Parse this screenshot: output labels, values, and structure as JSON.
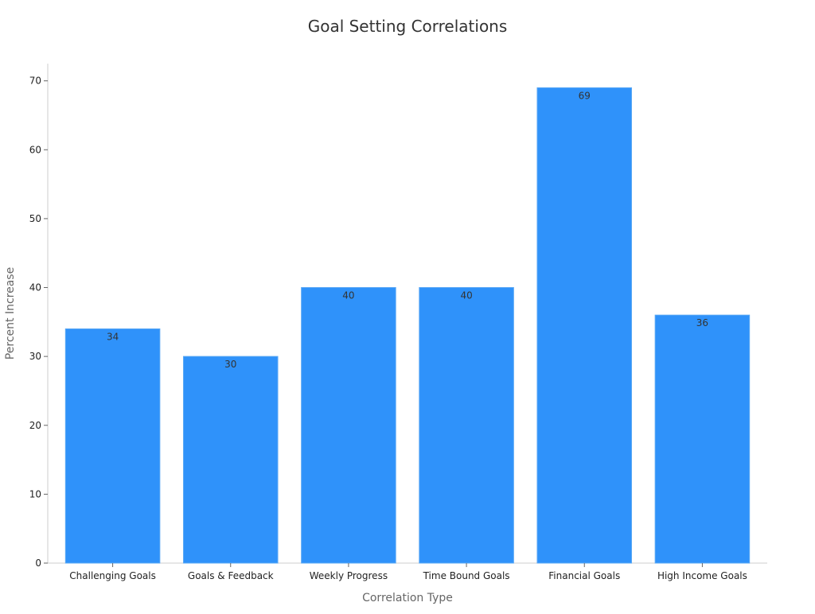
{
  "chart_data": {
    "type": "bar",
    "title": "Goal Setting Correlations",
    "xlabel": "Correlation Type",
    "ylabel": "Percent Increase",
    "categories": [
      "Challenging Goals",
      "Goals & Feedback",
      "Weekly Progress",
      "Time Bound Goals",
      "Financial Goals",
      "High Income Goals"
    ],
    "values": [
      34,
      30,
      40,
      40,
      69,
      36
    ],
    "ylim": [
      0,
      72.5
    ],
    "yticks": [
      0,
      10,
      20,
      30,
      40,
      50,
      60,
      70
    ],
    "grid": false,
    "legend": "none",
    "bar_color": "#2f92fa",
    "bar_edge_color": "#5aa8f5",
    "label_position": "inside-top"
  }
}
